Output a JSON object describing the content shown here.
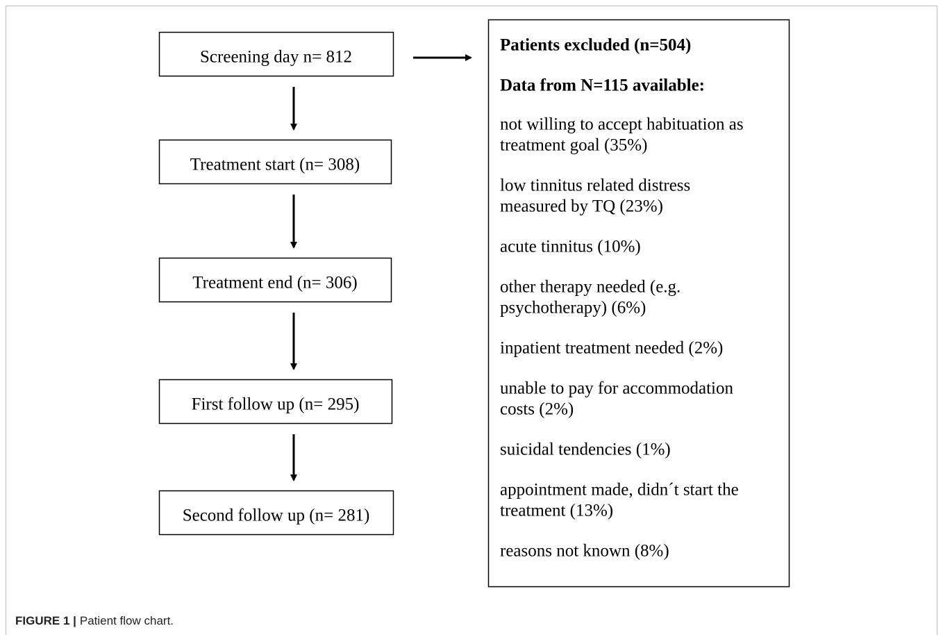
{
  "nodes": [
    {
      "label": "Screening day n= 812"
    },
    {
      "label": "Treatment start (n= 308)"
    },
    {
      "label": "Treatment end (n= 306)"
    },
    {
      "label": "First follow up (n= 295)"
    },
    {
      "label": "Second follow up (n= 281)"
    }
  ],
  "exclusion": {
    "heading": "Patients excluded (n=504)",
    "subheading": "Data from N=115 available:",
    "reasons": [
      [
        "not willing to accept habituation as",
        "treatment goal (35%)"
      ],
      [
        "low tinnitus related distress",
        "measured by TQ (23%)"
      ],
      [
        "acute tinnitus (10%)"
      ],
      [
        "other therapy needed (e.g.",
        "psychotherapy) (6%)"
      ],
      [
        "inpatient treatment needed (2%)"
      ],
      [
        "unable to pay for accommodation",
        "costs (2%)"
      ],
      [
        "suicidal tendencies (1%)"
      ],
      [
        "appointment made, didn´t start the",
        "treatment (13%)"
      ],
      [
        "reasons not known (8%)"
      ]
    ]
  },
  "caption": {
    "label": "FIGURE 1 |",
    "text": "Patient flow chart."
  }
}
